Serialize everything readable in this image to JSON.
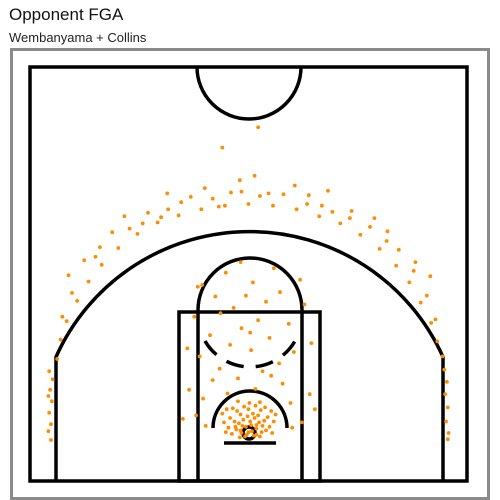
{
  "header": {
    "title": "Opponent FGA",
    "subtitle": "Wembanyama + Collins"
  },
  "colors": {
    "shot_marker": "#ff8c00",
    "court_lines": "#000000",
    "frame_border": "#8a8a8a"
  },
  "chart_data": {
    "type": "scatter",
    "title": "Opponent FGA",
    "subtitle": "Wembanyama + Collins",
    "xlabel": "",
    "ylabel": "",
    "grid": false,
    "legend": "none",
    "background": "half-court diagram",
    "units": "feet from rim center",
    "xlim": [
      -25,
      25
    ],
    "ylim": [
      -5.25,
      41.75
    ],
    "series": [
      {
        "marker_color": "#ff8c00",
        "points": [
          [
            -1.4,
            0.6
          ],
          [
            -0.8,
            0.2
          ],
          [
            -0.3,
            0.9
          ],
          [
            0.4,
            0.4
          ],
          [
            0.9,
            0.7
          ],
          [
            1.5,
            0.3
          ],
          [
            -1.9,
            0.1
          ],
          [
            2.0,
            0.5
          ],
          [
            -1.1,
            1.3
          ],
          [
            0.2,
            1.5
          ],
          [
            1.2,
            1.4
          ],
          [
            -0.6,
            1.7
          ],
          [
            0.7,
            1.9
          ],
          [
            -1.6,
            1.5
          ],
          [
            1.8,
            1.6
          ],
          [
            -2.3,
            0.8
          ],
          [
            2.4,
            0.9
          ],
          [
            -0.1,
            2.1
          ],
          [
            0.5,
            2.4
          ],
          [
            -0.9,
            2.3
          ],
          [
            1.1,
            2.2
          ],
          [
            -2.1,
            1.9
          ],
          [
            2.2,
            2.0
          ],
          [
            -1.3,
            2.7
          ],
          [
            1.4,
            2.8
          ],
          [
            0.0,
            2.9
          ],
          [
            -0.4,
            -0.2
          ],
          [
            0.6,
            -0.1
          ],
          [
            -1.0,
            -0.3
          ],
          [
            1.3,
            -0.2
          ],
          [
            -2.6,
            0.3
          ],
          [
            2.7,
            0.2
          ],
          [
            -0.2,
            0.0
          ],
          [
            0.3,
            1.1
          ],
          [
            -0.7,
            1.0
          ],
          [
            0.9,
            1.1
          ],
          [
            -1.5,
            0.9
          ],
          [
            1.6,
            1.0
          ],
          [
            -2.8,
            1.4
          ],
          [
            2.9,
            1.5
          ],
          [
            -0.5,
            3.2
          ],
          [
            0.8,
            3.3
          ],
          [
            -1.8,
            3.0
          ],
          [
            1.9,
            3.1
          ],
          [
            0.1,
            3.6
          ],
          [
            -1.2,
            3.8
          ],
          [
            1.3,
            3.7
          ],
          [
            -3.0,
            2.4
          ],
          [
            3.1,
            2.3
          ],
          [
            -2.5,
            2.9
          ],
          [
            2.6,
            2.7
          ],
          [
            0.0,
            0.3
          ],
          [
            -0.9,
            0.5
          ],
          [
            0.9,
            0.0
          ],
          [
            -5.2,
            4.1
          ],
          [
            4.8,
            3.6
          ],
          [
            -4.1,
            6.2
          ],
          [
            3.9,
            5.8
          ],
          [
            -6.0,
            2.2
          ],
          [
            6.1,
            1.4
          ],
          [
            -3.3,
            7.5
          ],
          [
            3.5,
            8.1
          ],
          [
            -5.6,
            8.9
          ],
          [
            5.2,
            9.4
          ],
          [
            -2.1,
            10.2
          ],
          [
            2.4,
            11.0
          ],
          [
            0.3,
            9.6
          ],
          [
            -0.8,
            12.1
          ],
          [
            1.1,
            13.0
          ],
          [
            -4.4,
            11.3
          ],
          [
            4.6,
            12.6
          ],
          [
            -1.7,
            14.4
          ],
          [
            2.0,
            15.1
          ],
          [
            -3.8,
            15.7
          ],
          [
            3.6,
            16.2
          ],
          [
            0.5,
            17.3
          ],
          [
            -2.6,
            18.4
          ],
          [
            2.9,
            18.9
          ],
          [
            -0.9,
            19.6
          ],
          [
            -6.8,
            5.1
          ],
          [
            7.0,
            4.6
          ],
          [
            -4.9,
            1.0
          ],
          [
            5.0,
            0.8
          ],
          [
            -3.2,
            13.8
          ],
          [
            1.6,
            7.2
          ],
          [
            -1.2,
            6.4
          ],
          [
            0.8,
            5.2
          ],
          [
            -2.4,
            4.7
          ],
          [
            2.6,
            6.7
          ],
          [
            -6.2,
            13.4
          ],
          [
            6.4,
            14.8
          ],
          [
            -7.0,
            9.8
          ],
          [
            7.2,
            10.4
          ],
          [
            -5.8,
            16.8
          ],
          [
            5.9,
            17.6
          ],
          [
            -0.3,
            15.8
          ],
          [
            0.2,
            11.6
          ],
          [
            -7.5,
            1.8
          ],
          [
            7.6,
            2.9
          ],
          [
            -22.6,
            1.2
          ],
          [
            -22.8,
            2.5
          ],
          [
            -22.5,
            3.8
          ],
          [
            -22.9,
            0.4
          ],
          [
            -22.7,
            5.1
          ],
          [
            -22.4,
            6.3
          ],
          [
            -22.9,
            4.4
          ],
          [
            -22.6,
            -0.6
          ],
          [
            -22.8,
            7.2
          ],
          [
            -21.9,
            8.6
          ],
          [
            22.6,
            1.5
          ],
          [
            22.8,
            3.1
          ],
          [
            22.5,
            4.6
          ],
          [
            22.9,
            0.2
          ],
          [
            22.7,
            6.0
          ],
          [
            22.4,
            7.4
          ],
          [
            22.8,
            -0.5
          ],
          [
            22.2,
            8.9
          ],
          [
            -21.5,
            10.8
          ],
          [
            -20.8,
            12.9
          ],
          [
            -19.6,
            15.2
          ],
          [
            -18.3,
            17.4
          ],
          [
            -16.8,
            19.3
          ],
          [
            -14.9,
            21.2
          ],
          [
            -12.7,
            22.8
          ],
          [
            -10.4,
            24.1
          ],
          [
            -8.0,
            24.9
          ],
          [
            -5.4,
            25.6
          ],
          [
            -2.7,
            26.0
          ],
          [
            0.0,
            26.2
          ],
          [
            2.8,
            26.0
          ],
          [
            5.5,
            25.6
          ],
          [
            8.1,
            24.8
          ],
          [
            10.5,
            24.0
          ],
          [
            12.8,
            22.7
          ],
          [
            15.0,
            21.1
          ],
          [
            16.9,
            19.2
          ],
          [
            18.4,
            17.3
          ],
          [
            19.7,
            15.0
          ],
          [
            20.9,
            12.7
          ],
          [
            21.6,
            10.6
          ],
          [
            -17.5,
            20.2
          ],
          [
            -13.6,
            23.4
          ],
          [
            -9.2,
            25.6
          ],
          [
            -4.1,
            26.8
          ],
          [
            1.3,
            27.1
          ],
          [
            6.7,
            26.2
          ],
          [
            11.6,
            24.6
          ],
          [
            15.8,
            22.0
          ],
          [
            18.9,
            18.6
          ],
          [
            -20.2,
            16.1
          ],
          [
            20.4,
            15.8
          ],
          [
            -11.5,
            25.2
          ],
          [
            11.8,
            25.4
          ],
          [
            -6.6,
            27.0
          ],
          [
            6.9,
            27.2
          ],
          [
            -2.0,
            27.5
          ],
          [
            2.3,
            27.4
          ],
          [
            -15.6,
            23.0
          ],
          [
            15.9,
            23.1
          ],
          [
            -18.8,
            19.8
          ],
          [
            19.1,
            19.6
          ],
          [
            -7.7,
            26.4
          ],
          [
            8.4,
            26.0
          ],
          [
            -0.8,
            27.6
          ],
          [
            4.0,
            27.3
          ],
          [
            -3.4,
            25.9
          ],
          [
            9.6,
            25.3
          ],
          [
            -10.0,
            24.7
          ],
          [
            13.9,
            23.6
          ],
          [
            -12.1,
            24.0
          ],
          [
            -21.3,
            13.4
          ],
          [
            21.4,
            13.1
          ],
          [
            -9.3,
            27.4
          ],
          [
            9.1,
            27.7
          ],
          [
            -14.2,
            24.8
          ],
          [
            14.4,
            24.6
          ],
          [
            -1.0,
            28.9
          ],
          [
            0.7,
            29.4
          ],
          [
            -17.0,
            21.3
          ],
          [
            17.2,
            21.0
          ],
          [
            -20.6,
            18.1
          ],
          [
            20.8,
            18.0
          ],
          [
            -5.0,
            28.0
          ],
          [
            5.3,
            28.3
          ],
          [
            -3.0,
            32.6
          ],
          [
            1.1,
            34.9
          ],
          [
            -5.3,
            17.0
          ]
        ]
      }
    ]
  }
}
